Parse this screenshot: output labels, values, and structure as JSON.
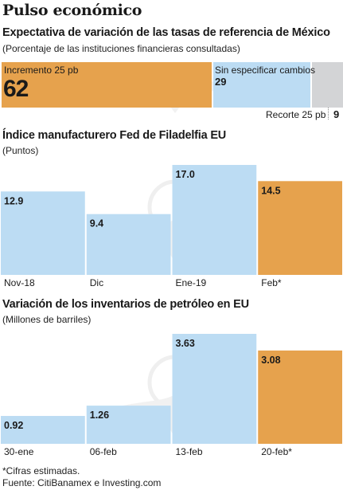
{
  "page": {
    "title": "Pulso económico"
  },
  "colors": {
    "orange": "#e6a24d",
    "blue": "#bcdcf3",
    "gray": "#d3d4d6",
    "text": "#1a1a1a"
  },
  "chart_data": [
    {
      "type": "bar",
      "stacked": true,
      "orientation": "horizontal",
      "title": "Expectativa de variación de las tasas de referencia de México",
      "subtitle": "(Porcentaje de las instituciones financieras consultadas)",
      "categories": [
        "Incremento 25 pb",
        "Sin especificar cambios",
        "Recorte 25 pb"
      ],
      "values": [
        62,
        29,
        9
      ],
      "value_labels": [
        "62",
        "29",
        "9"
      ],
      "colors": [
        "#e6a24d",
        "#bcdcf3",
        "#d3d4d6"
      ]
    },
    {
      "type": "bar",
      "title": "Índice manufacturero Fed de Filadelfia EU",
      "subtitle": "(Puntos)",
      "categories": [
        "Nov-18",
        "Dic",
        "Ene-19",
        "Feb*"
      ],
      "values": [
        12.9,
        9.4,
        17.0,
        14.5
      ],
      "value_labels": [
        "12.9",
        "9.4",
        "17.0",
        "14.5"
      ],
      "colors": [
        "#bcdcf3",
        "#bcdcf3",
        "#bcdcf3",
        "#e6a24d"
      ],
      "ylim": [
        0,
        17.0
      ]
    },
    {
      "type": "bar",
      "title": "Variación de los inventarios de petróleo en EU",
      "subtitle": "(Millones de barriles)",
      "categories": [
        "30-ene",
        "06-feb",
        "13-feb",
        "20-feb*"
      ],
      "values": [
        0.92,
        1.26,
        3.63,
        3.08
      ],
      "value_labels": [
        "0.92",
        "1.26",
        "3.63",
        "3.08"
      ],
      "colors": [
        "#bcdcf3",
        "#bcdcf3",
        "#bcdcf3",
        "#e6a24d"
      ],
      "ylim": [
        0,
        3.63
      ]
    }
  ],
  "footer": {
    "note": "*Cifras estimadas.",
    "source": "Fuente: CitiBanamex e Investing.com"
  }
}
